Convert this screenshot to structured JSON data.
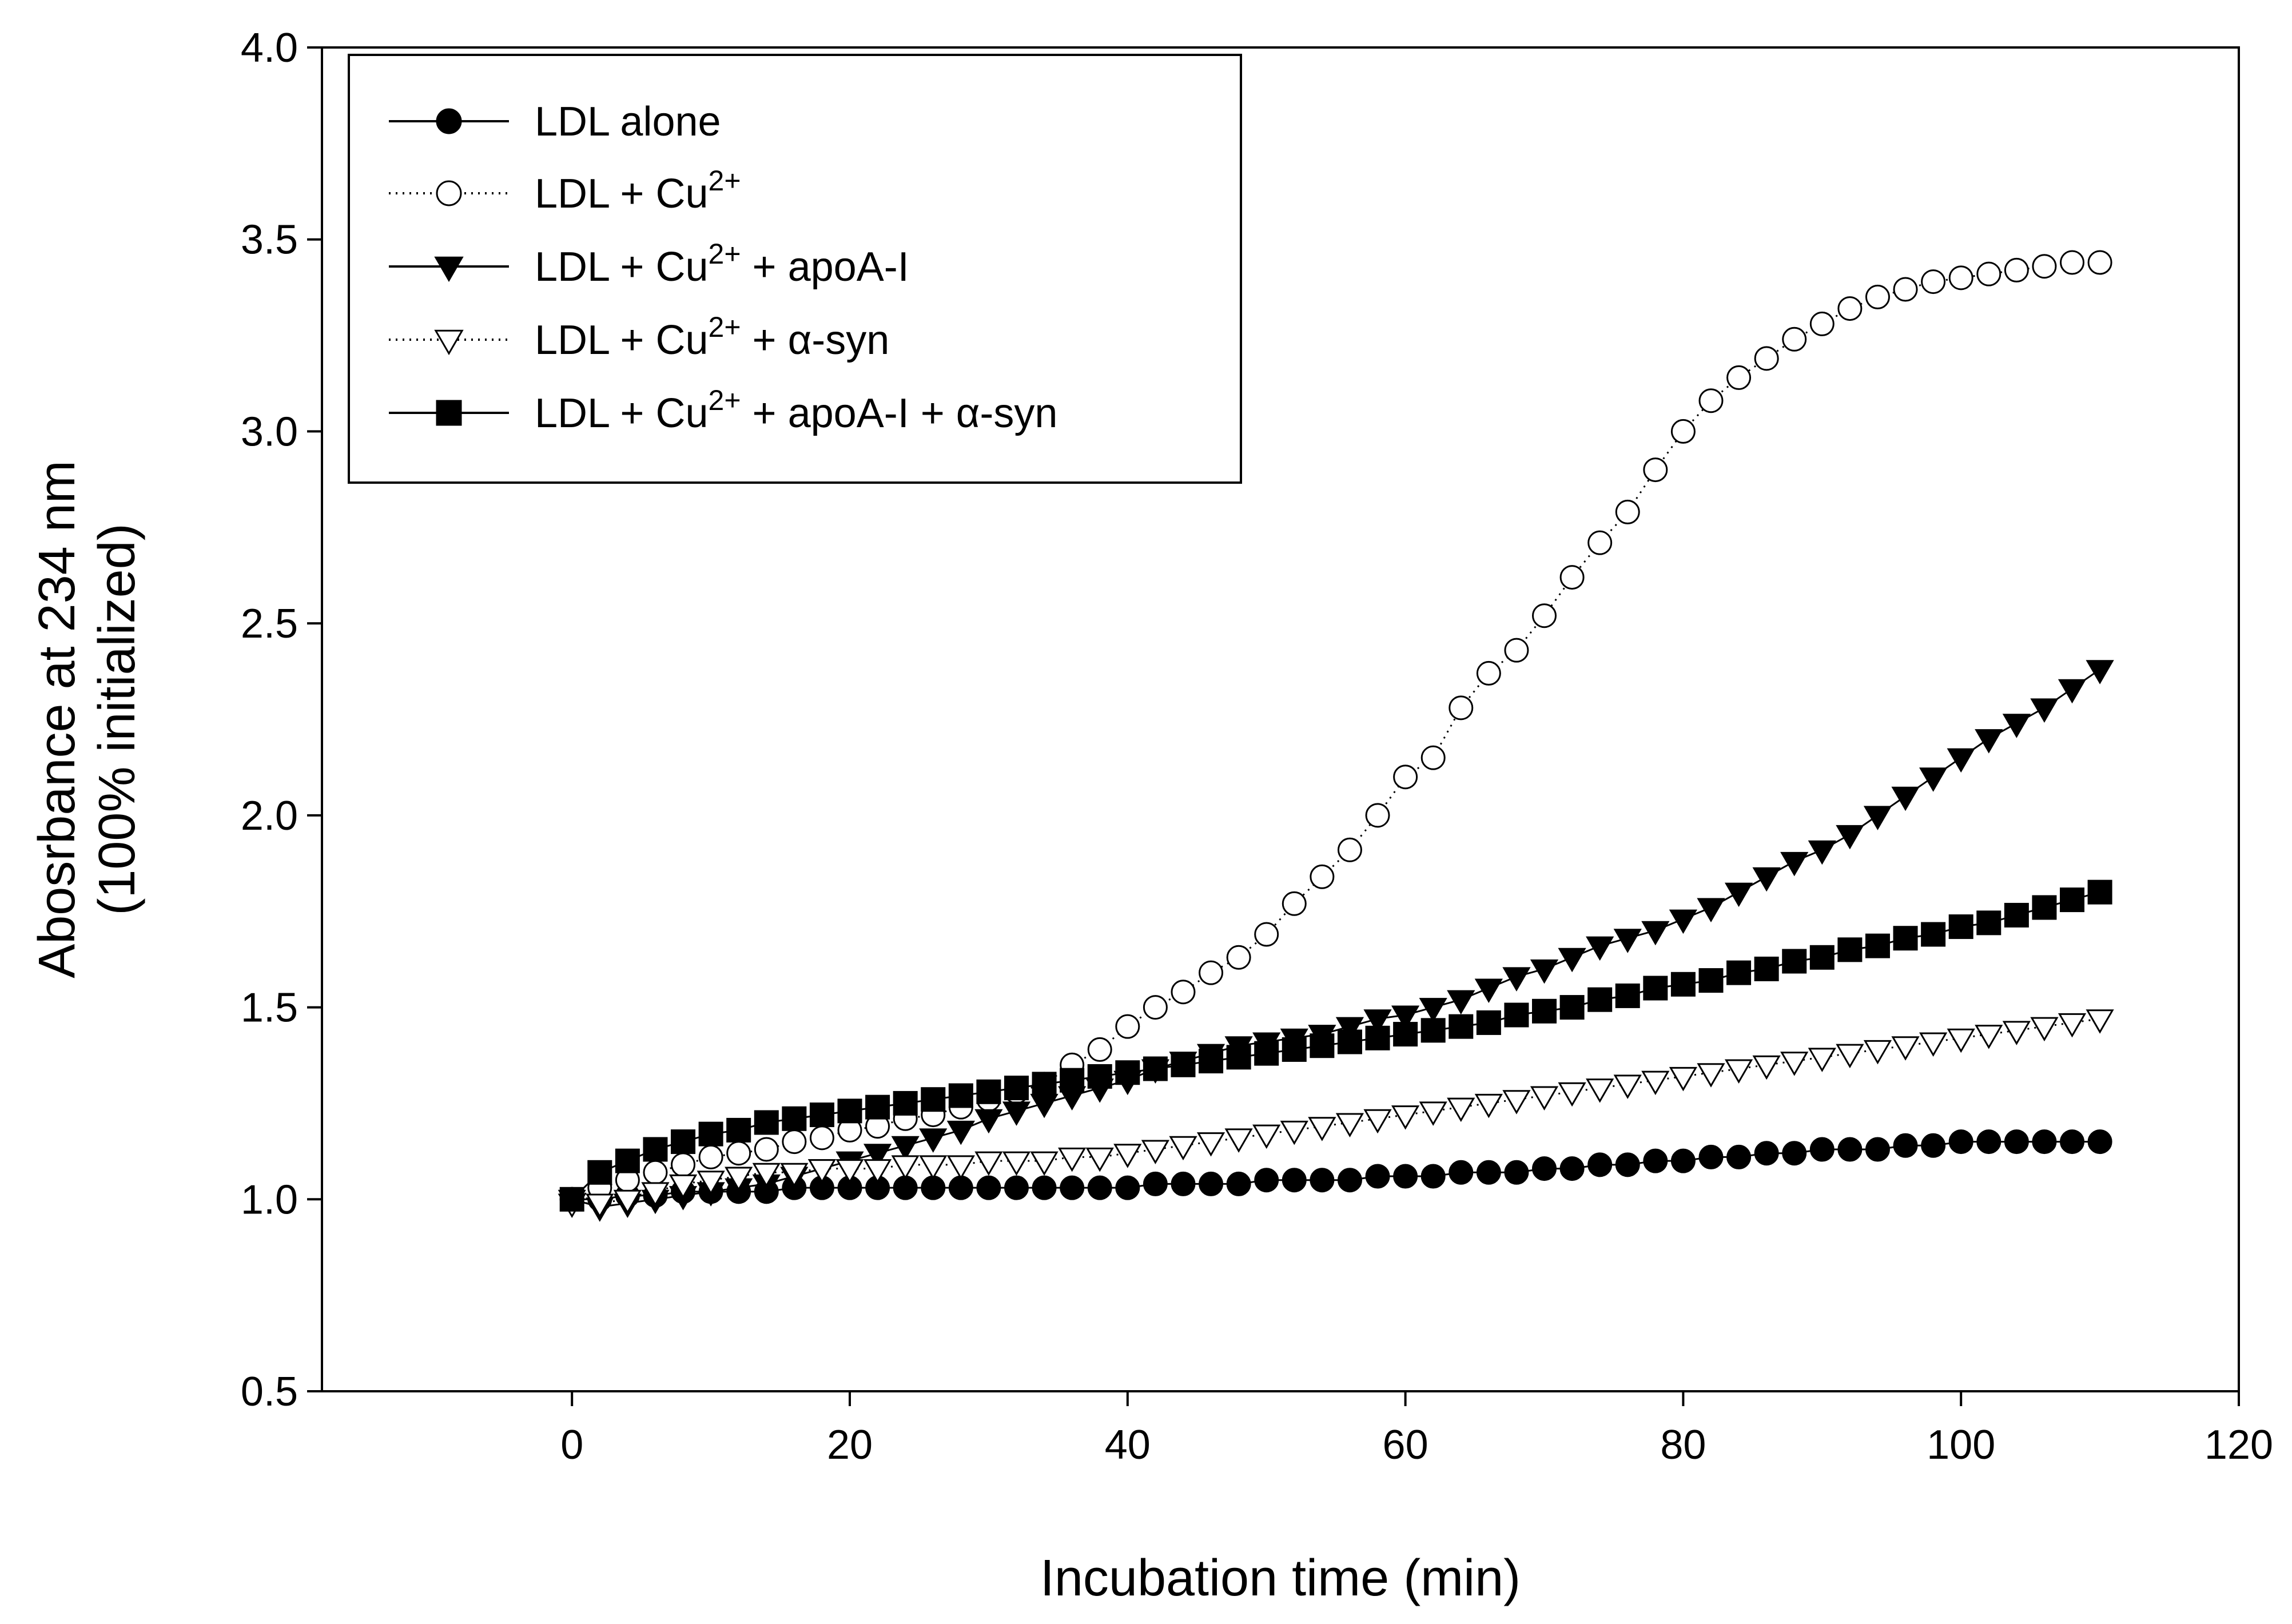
{
  "chart_data": {
    "type": "scatter",
    "title": "",
    "xlabel": "Incubation time (min)",
    "ylabel_line1": "Abosrbance at 234 nm",
    "ylabel_line2": "(100% initialized)",
    "xlim": [
      -18,
      120
    ],
    "ylim": [
      0.5,
      4.0
    ],
    "xticks": [
      0,
      20,
      40,
      60,
      80,
      100,
      120
    ],
    "yticks": [
      0.5,
      1.0,
      1.5,
      2.0,
      2.5,
      3.0,
      3.5,
      4.0
    ],
    "xtick_labels": [
      "0",
      "20",
      "40",
      "60",
      "80",
      "100",
      "120"
    ],
    "ytick_labels": [
      "0.5",
      "1.0",
      "1.5",
      "2.0",
      "2.5",
      "3.0",
      "3.5",
      "4.0"
    ],
    "grid": false,
    "legend_position": "top-left",
    "sample_interval_min": 2,
    "x_start_min": 0,
    "x_end_min": 110,
    "series": [
      {
        "name": "LDL alone",
        "legend": {
          "base": "LDL alone",
          "sup": "",
          "rest": ""
        },
        "marker": "circle-filled",
        "line": "solid",
        "values": [
          1.0,
          1.0,
          1.01,
          1.01,
          1.02,
          1.02,
          1.02,
          1.02,
          1.03,
          1.03,
          1.03,
          1.03,
          1.03,
          1.03,
          1.03,
          1.03,
          1.03,
          1.03,
          1.03,
          1.03,
          1.03,
          1.04,
          1.04,
          1.04,
          1.04,
          1.05,
          1.05,
          1.05,
          1.05,
          1.06,
          1.06,
          1.06,
          1.07,
          1.07,
          1.07,
          1.08,
          1.08,
          1.09,
          1.09,
          1.1,
          1.1,
          1.11,
          1.11,
          1.12,
          1.12,
          1.13,
          1.13,
          1.13,
          1.14,
          1.14,
          1.15,
          1.15,
          1.15,
          1.15,
          1.15,
          1.15
        ]
      },
      {
        "name": "LDL + Cu2+",
        "legend": {
          "base": "LDL + Cu",
          "sup": "2+",
          "rest": ""
        },
        "marker": "circle-open",
        "line": "dotted",
        "values": [
          1.0,
          1.03,
          1.05,
          1.07,
          1.09,
          1.11,
          1.12,
          1.13,
          1.15,
          1.16,
          1.18,
          1.19,
          1.21,
          1.22,
          1.24,
          1.26,
          1.28,
          1.3,
          1.35,
          1.39,
          1.45,
          1.5,
          1.54,
          1.59,
          1.63,
          1.69,
          1.77,
          1.84,
          1.91,
          2.0,
          2.1,
          2.15,
          2.28,
          2.37,
          2.43,
          2.52,
          2.62,
          2.71,
          2.79,
          2.9,
          3.0,
          3.08,
          3.14,
          3.19,
          3.24,
          3.28,
          3.32,
          3.35,
          3.37,
          3.39,
          3.4,
          3.41,
          3.42,
          3.43,
          3.44,
          3.44
        ]
      },
      {
        "name": "LDL + Cu2+ + apoA-I",
        "legend": {
          "base": "LDL + Cu",
          "sup": "2+",
          "rest": " + apoA-I"
        },
        "marker": "triangle-down-filled",
        "line": "solid",
        "values": [
          1.0,
          0.98,
          0.99,
          1.0,
          1.01,
          1.02,
          1.03,
          1.04,
          1.06,
          1.08,
          1.1,
          1.12,
          1.14,
          1.16,
          1.18,
          1.21,
          1.23,
          1.25,
          1.27,
          1.29,
          1.31,
          1.34,
          1.36,
          1.38,
          1.4,
          1.41,
          1.42,
          1.43,
          1.45,
          1.47,
          1.48,
          1.5,
          1.52,
          1.55,
          1.58,
          1.6,
          1.63,
          1.66,
          1.68,
          1.7,
          1.73,
          1.76,
          1.8,
          1.84,
          1.88,
          1.91,
          1.95,
          2.0,
          2.05,
          2.1,
          2.15,
          2.2,
          2.24,
          2.28,
          2.33,
          2.38
        ]
      },
      {
        "name": "LDL + Cu2+ + α-syn",
        "legend": {
          "base": "LDL + Cu",
          "sup": "2+",
          "rest": " + α-syn"
        },
        "marker": "triangle-down-open",
        "line": "dotted",
        "values": [
          0.99,
          0.99,
          1.0,
          1.02,
          1.04,
          1.05,
          1.06,
          1.07,
          1.07,
          1.08,
          1.08,
          1.08,
          1.09,
          1.09,
          1.09,
          1.1,
          1.1,
          1.1,
          1.11,
          1.11,
          1.12,
          1.13,
          1.14,
          1.15,
          1.16,
          1.17,
          1.18,
          1.19,
          1.2,
          1.21,
          1.22,
          1.23,
          1.24,
          1.25,
          1.26,
          1.27,
          1.28,
          1.29,
          1.3,
          1.31,
          1.32,
          1.33,
          1.34,
          1.35,
          1.36,
          1.37,
          1.38,
          1.39,
          1.4,
          1.41,
          1.42,
          1.43,
          1.44,
          1.45,
          1.46,
          1.47
        ]
      },
      {
        "name": "LDL + Cu2+ + apoA-I + α-syn",
        "legend": {
          "base": "LDL + Cu",
          "sup": "2+",
          "rest": " + apoA-I + α-syn"
        },
        "marker": "square-filled",
        "line": "solid",
        "values": [
          1.0,
          1.07,
          1.1,
          1.13,
          1.15,
          1.17,
          1.18,
          1.2,
          1.21,
          1.22,
          1.23,
          1.24,
          1.25,
          1.26,
          1.27,
          1.28,
          1.29,
          1.3,
          1.31,
          1.32,
          1.33,
          1.34,
          1.35,
          1.36,
          1.37,
          1.38,
          1.39,
          1.4,
          1.41,
          1.42,
          1.43,
          1.44,
          1.45,
          1.46,
          1.48,
          1.49,
          1.5,
          1.52,
          1.53,
          1.55,
          1.56,
          1.57,
          1.59,
          1.6,
          1.62,
          1.63,
          1.65,
          1.66,
          1.68,
          1.69,
          1.71,
          1.72,
          1.74,
          1.76,
          1.78,
          1.8
        ]
      }
    ]
  }
}
